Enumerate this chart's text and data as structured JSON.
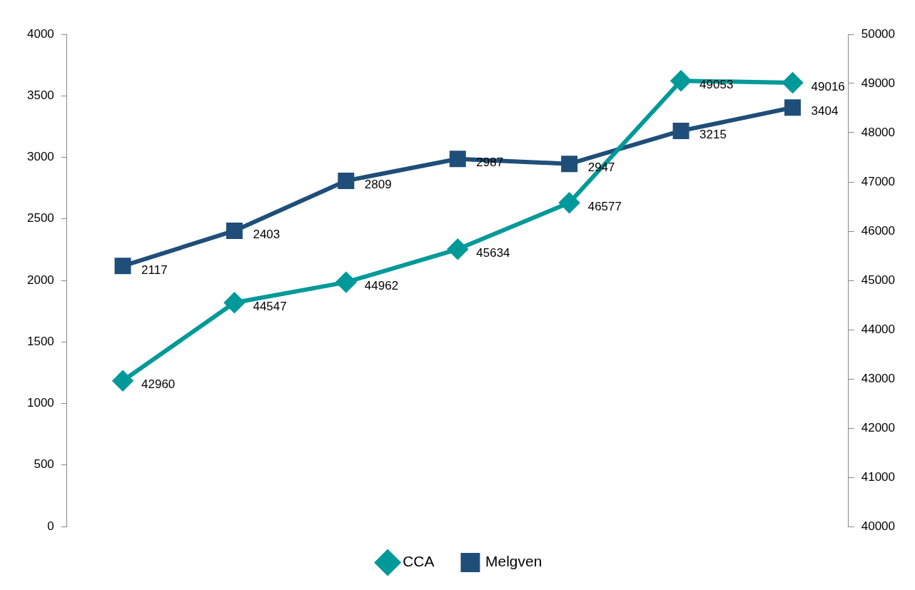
{
  "chart_data": {
    "type": "line",
    "categories": [
      null,
      null,
      null,
      null,
      null,
      null,
      null
    ],
    "series": [
      {
        "name": "CCA",
        "color": "#009999",
        "marker": "diamond",
        "axis": "y2",
        "values": [
          42960,
          44547,
          44962,
          45634,
          46577,
          49053,
          49016
        ]
      },
      {
        "name": "Melgven",
        "color": "#1f4e79",
        "marker": "square",
        "values": [
          2117,
          2403,
          2809,
          2987,
          2947,
          3215,
          3404
        ]
      }
    ],
    "ylim": [
      0,
      4000
    ],
    "yticks": [
      0,
      500,
      1000,
      1500,
      2000,
      2500,
      3000,
      3500,
      4000
    ],
    "y2lim": [
      40000,
      50000
    ],
    "y2ticks": [
      40000,
      41000,
      42000,
      43000,
      44000,
      45000,
      46000,
      47000,
      48000,
      49000,
      50000
    ],
    "data_labels": true,
    "grid": false,
    "legend": "bottom"
  }
}
